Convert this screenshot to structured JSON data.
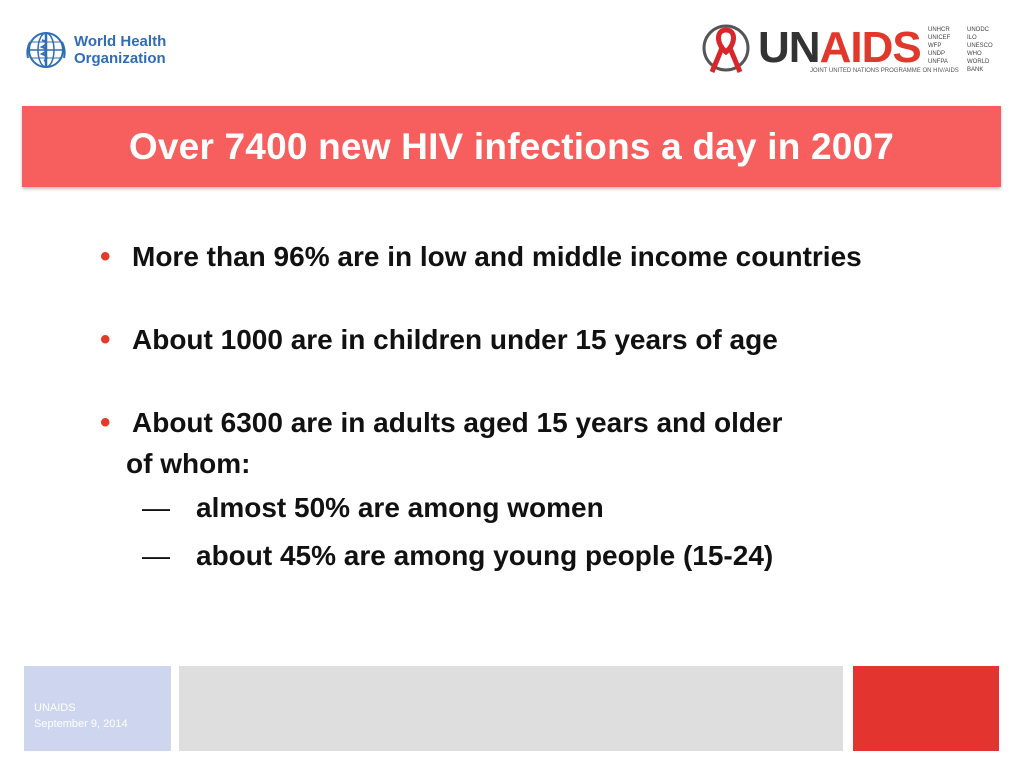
{
  "logos": {
    "who": {
      "line1": "World Health",
      "line2": "Organization"
    },
    "unaids": {
      "un": "UN",
      "aids": "AIDS",
      "subtitle": "JOINT UNITED NATIONS PROGRAMME ON HIV/AIDS",
      "orgs": [
        "UNHCR",
        "UNODC",
        "UNICEF",
        "ILO",
        "WFP",
        "UNESCO",
        "UNDP",
        "WHO",
        "UNFPA",
        "WORLD BANK"
      ]
    }
  },
  "title": "Over 7400 new HIV infections a day in 2007",
  "bullets": [
    {
      "text": "More than 96% are in low and middle income countries"
    },
    {
      "text": "About 1000 are in children under 15 years of age"
    },
    {
      "line1": "About 6300 are in adults aged 15 years and older",
      "line2": "of whom:"
    }
  ],
  "sub_bullets": [
    {
      "dash": "—",
      "text": "almost 50% are among women"
    },
    {
      "dash": "—",
      "text": "about 45% are among young people (15-24)"
    }
  ],
  "bullet_glyph": "•",
  "footer": {
    "org": "UNAIDS",
    "date": "September 9, 2014"
  },
  "colors": {
    "title_bar": "#f65f5d",
    "bullet": "#e23b2a",
    "footer_left": "#cdd6ee",
    "footer_mid": "#dedede",
    "footer_right": "#e3342f",
    "who_blue": "#2f6db5"
  }
}
